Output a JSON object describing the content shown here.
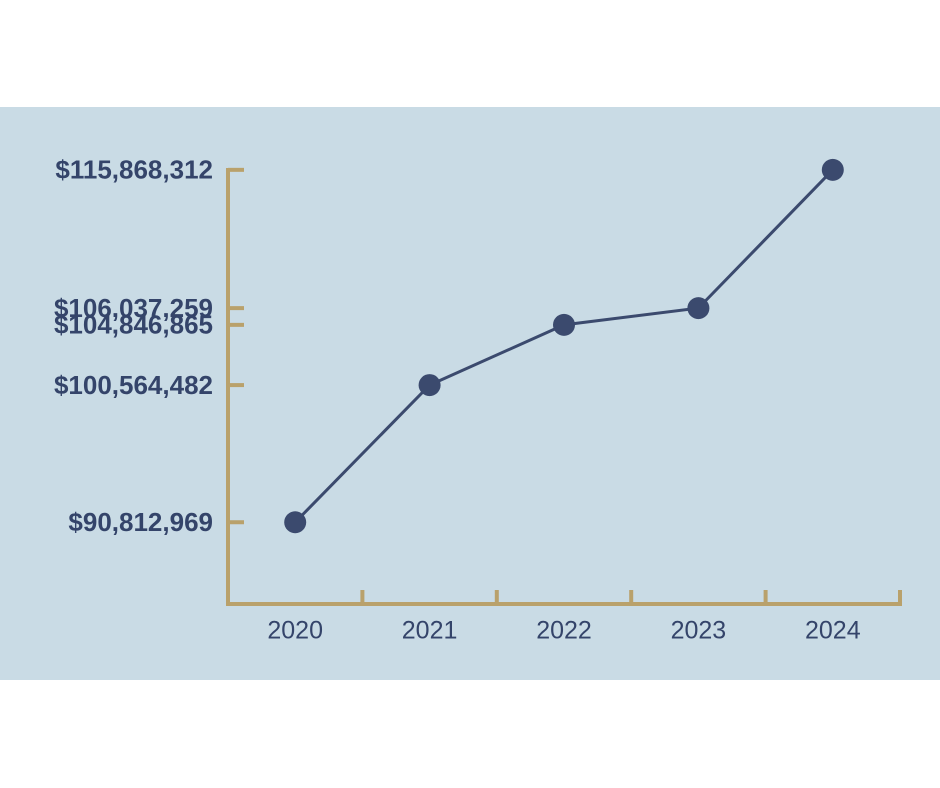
{
  "chart_data": {
    "type": "line",
    "categories": [
      "2020",
      "2021",
      "2022",
      "2023",
      "2024"
    ],
    "values": [
      90812969,
      100564482,
      104846865,
      106037259,
      115868312
    ],
    "color": "#3b4a6e",
    "ylim": [
      85000000,
      116000000
    ],
    "yticks": [
      {
        "value": 90812969,
        "label": "$90,812,969"
      },
      {
        "value": 100564482,
        "label": "$100,564,482"
      },
      {
        "value": 104846865,
        "label": "$104,846,865"
      },
      {
        "value": 106037259,
        "label": "$106,037,259"
      },
      {
        "value": 115868312,
        "label": "$115,868,312"
      }
    ],
    "grid": false
  }
}
